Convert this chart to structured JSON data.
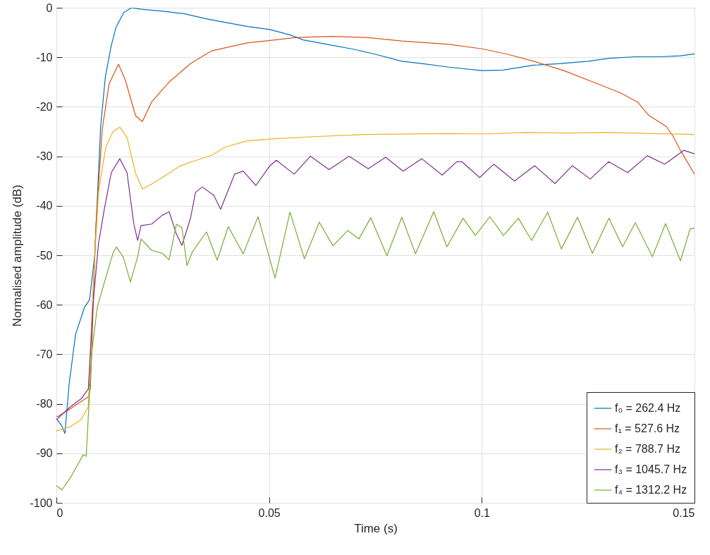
{
  "chart_data": {
    "type": "line",
    "xlabel": "Time (s)",
    "ylabel": "Normalised amplitude (dB)",
    "xlim": [
      0,
      0.15
    ],
    "xticks": [
      0,
      0.05,
      0.1,
      0.15
    ],
    "ylim": [
      -100,
      0
    ],
    "yticks": [
      -100,
      -90,
      -80,
      -70,
      -60,
      -50,
      -40,
      -30,
      -20,
      -10,
      0
    ],
    "grid": true,
    "legend": "bottom right",
    "series": [
      {
        "name": "f₀ = 262.4 Hz",
        "color": "#0072bd",
        "x": [
          0,
          0.0013,
          0.002,
          0.003,
          0.0045,
          0.0066,
          0.0078,
          0.009,
          0.0104,
          0.0115,
          0.0128,
          0.014,
          0.0158,
          0.0176,
          0.02,
          0.025,
          0.03,
          0.035,
          0.04,
          0.045,
          0.0502,
          0.055,
          0.058,
          0.065,
          0.07,
          0.075,
          0.0812,
          0.0862,
          0.0923,
          0.1001,
          0.105,
          0.1122,
          0.118,
          0.125,
          0.13,
          0.1361,
          0.142,
          0.1467,
          0.15
        ],
        "values": [
          -83,
          -84.5,
          -86,
          -76,
          -66,
          -60.5,
          -59,
          -50,
          -24,
          -14,
          -8,
          -4,
          -1,
          0,
          -0.3,
          -0.7,
          -1.2,
          -2.2,
          -3,
          -3.8,
          -4.4,
          -5.5,
          -6.5,
          -7.6,
          -8.4,
          -9.4,
          -10.8,
          -11.3,
          -12,
          -12.7,
          -12.6,
          -11.6,
          -11.3,
          -10.8,
          -10.2,
          -9.9,
          -9.9,
          -9.7,
          -9.3
        ]
      },
      {
        "name": "f₁ = 527.6 Hz",
        "color": "#d95319",
        "x": [
          0,
          0.0003,
          0.0033,
          0.005,
          0.0075,
          0.008,
          0.0093,
          0.0108,
          0.0124,
          0.0146,
          0.0162,
          0.0186,
          0.0202,
          0.0224,
          0.0265,
          0.0315,
          0.0365,
          0.0448,
          0.0502,
          0.0564,
          0.0646,
          0.0729,
          0.0812,
          0.0923,
          0.1001,
          0.1061,
          0.1122,
          0.1193,
          0.1276,
          0.1326,
          0.1367,
          0.1392,
          0.1434,
          0.145,
          0.1467,
          0.15
        ],
        "values": [
          -82.5,
          -82.6,
          -81,
          -80,
          -78.6,
          -76.8,
          -43.7,
          -24.4,
          -15.3,
          -11.4,
          -14.6,
          -21.8,
          -23,
          -19,
          -15,
          -11.3,
          -8.7,
          -7.1,
          -6.6,
          -6,
          -5.8,
          -6,
          -6.7,
          -7.4,
          -8.3,
          -9.4,
          -10.8,
          -12.7,
          -15.5,
          -17.2,
          -19.1,
          -21.7,
          -24,
          -26,
          -28.8,
          -33.6
        ]
      },
      {
        "name": "f₂ = 788.7 Hz",
        "color": "#edb120",
        "x": [
          0,
          0.0033,
          0.0058,
          0.0075,
          0.0086,
          0.0099,
          0.0116,
          0.0133,
          0.0149,
          0.0166,
          0.0186,
          0.0202,
          0.0224,
          0.0265,
          0.029,
          0.0315,
          0.0365,
          0.0398,
          0.0448,
          0.0502,
          0.0613,
          0.0729,
          0.0923,
          0.1001,
          0.11,
          0.12,
          0.13,
          0.14,
          0.15
        ],
        "values": [
          -85.5,
          -84.6,
          -83.2,
          -80.6,
          -56.7,
          -37.3,
          -28.2,
          -25,
          -24.1,
          -26.2,
          -33.4,
          -36.6,
          -35.6,
          -33.4,
          -32,
          -31.2,
          -29.8,
          -28.1,
          -26.9,
          -26.5,
          -26,
          -25.6,
          -25.4,
          -25.5,
          -25.2,
          -25.3,
          -25.2,
          -25.4,
          -25.6
        ]
      },
      {
        "name": "f₃ = 1045.7 Hz",
        "color": "#7e2f8e",
        "x": [
          0,
          0.0033,
          0.0058,
          0.0075,
          0.0086,
          0.0099,
          0.0113,
          0.0129,
          0.0149,
          0.0166,
          0.0182,
          0.0191,
          0.0199,
          0.0224,
          0.0249,
          0.0265,
          0.0282,
          0.0295,
          0.0315,
          0.0327,
          0.0343,
          0.037,
          0.0386,
          0.0419,
          0.0439,
          0.0469,
          0.0502,
          0.0517,
          0.0559,
          0.0597,
          0.0641,
          0.0688,
          0.0733,
          0.0774,
          0.0815,
          0.0859,
          0.0907,
          0.0941,
          0.0953,
          0.0995,
          0.1028,
          0.1077,
          0.1124,
          0.1172,
          0.1213,
          0.1255,
          0.1298,
          0.1343,
          0.1389,
          0.143,
          0.1475,
          0.15
        ],
        "values": [
          -83.2,
          -80.6,
          -79,
          -77,
          -60,
          -47.6,
          -40.5,
          -33.3,
          -30.5,
          -33.3,
          -43.7,
          -47,
          -44,
          -43.7,
          -41.9,
          -41.2,
          -45.7,
          -48,
          -42.6,
          -37.3,
          -36.2,
          -37.9,
          -40.7,
          -33.6,
          -33,
          -35.9,
          -31.9,
          -30.8,
          -33.6,
          -30,
          -32.7,
          -30,
          -32.5,
          -30.2,
          -33,
          -30.5,
          -33.8,
          -31.1,
          -31.1,
          -34.3,
          -31.6,
          -35,
          -31.9,
          -35.5,
          -31.9,
          -34.6,
          -31.1,
          -33.3,
          -29.9,
          -31.6,
          -28.8,
          -29.5
        ]
      },
      {
        "name": "f₄ = 1312.2 Hz",
        "color": "#77ac30",
        "x": [
          0,
          0.0013,
          0.0033,
          0.005,
          0.0063,
          0.007,
          0.0083,
          0.0096,
          0.0113,
          0.0133,
          0.0141,
          0.0157,
          0.0174,
          0.0191,
          0.0199,
          0.0224,
          0.0249,
          0.0265,
          0.0282,
          0.0295,
          0.0307,
          0.0318,
          0.033,
          0.0353,
          0.0378,
          0.0404,
          0.0439,
          0.0474,
          0.0514,
          0.0549,
          0.0583,
          0.0618,
          0.065,
          0.0685,
          0.0711,
          0.0739,
          0.0777,
          0.0812,
          0.0844,
          0.0887,
          0.0918,
          0.0956,
          0.0985,
          0.1019,
          0.1051,
          0.1086,
          0.1117,
          0.1155,
          0.1187,
          0.1225,
          0.126,
          0.1299,
          0.1331,
          0.1361,
          0.1401,
          0.1432,
          0.1467,
          0.149,
          0.15
        ],
        "values": [
          -96.5,
          -97.4,
          -94.9,
          -92.3,
          -90.3,
          -90.6,
          -69.7,
          -60.5,
          -55.4,
          -49.6,
          -48.3,
          -50.3,
          -55.4,
          -50.3,
          -46.7,
          -49,
          -49.6,
          -50.9,
          -43.7,
          -44.4,
          -52.1,
          -49.6,
          -48,
          -45.3,
          -51,
          -44.2,
          -49.7,
          -42.2,
          -54.6,
          -41.3,
          -50.7,
          -43.3,
          -48.1,
          -45,
          -46.7,
          -42.4,
          -50.1,
          -42.3,
          -49.7,
          -41.2,
          -48.3,
          -42.5,
          -46,
          -42.2,
          -46,
          -42.5,
          -47,
          -41.3,
          -48.7,
          -42.3,
          -49.6,
          -42.5,
          -48.3,
          -43.4,
          -50.3,
          -43.6,
          -51.1,
          -44.6,
          -44.5
        ]
      }
    ]
  }
}
